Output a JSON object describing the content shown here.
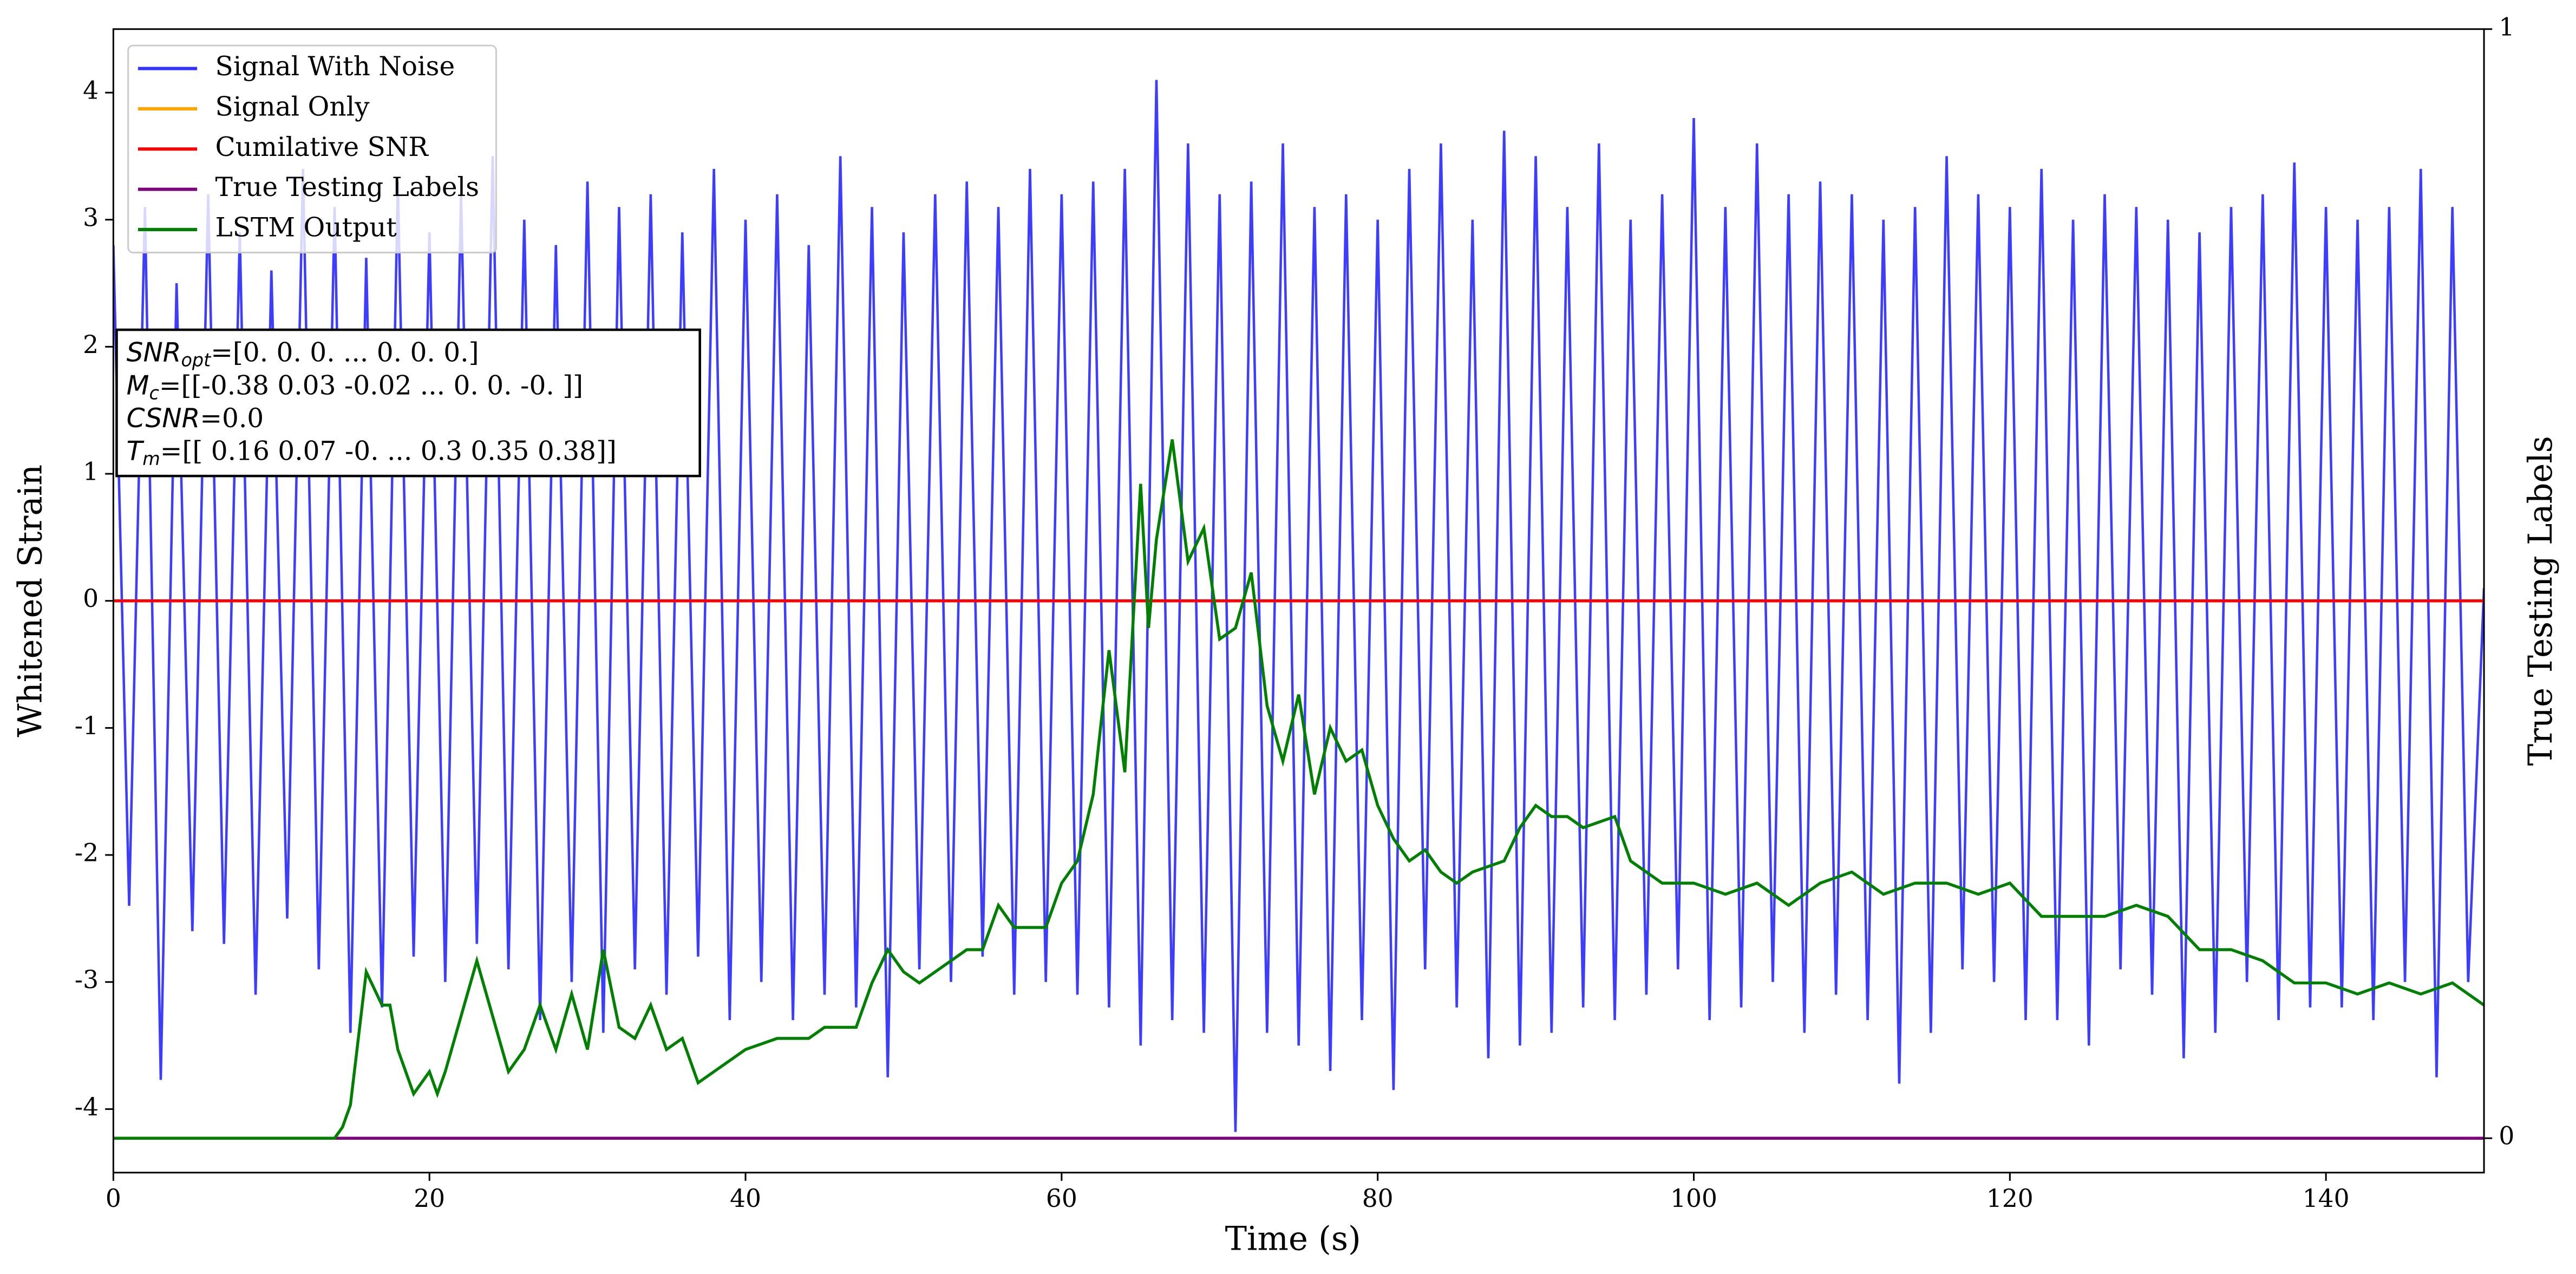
{
  "chart_data": {
    "type": "line",
    "xlabel": "Time (s)",
    "ylabel": "Whitened Strain",
    "y2label": "True Testing Labels",
    "xlim": [
      0,
      150
    ],
    "xticks": [
      0,
      20,
      40,
      60,
      80,
      100,
      120,
      140
    ],
    "ylim": [
      -4.5,
      4.5
    ],
    "yticks": [
      -4,
      -3,
      -2,
      -1,
      0,
      1,
      2,
      3,
      4
    ],
    "y2lim": [
      -0.031,
      1
    ],
    "y2ticks": [
      0,
      1
    ],
    "legend": "upper left",
    "series": [
      {
        "name": "Signal With Noise",
        "color": "#3333ff",
        "x": [
          0,
          1,
          2,
          3,
          4,
          5,
          6,
          7,
          8,
          9,
          10,
          11,
          12,
          13,
          14,
          15,
          16,
          17,
          18,
          19,
          20,
          21,
          22,
          23,
          24,
          25,
          26,
          27,
          28,
          29,
          30,
          31,
          32,
          33,
          34,
          35,
          36,
          37,
          38,
          39,
          40,
          41,
          42,
          43,
          44,
          45,
          46,
          47,
          48,
          49,
          50,
          51,
          52,
          53,
          54,
          55,
          56,
          57,
          58,
          59,
          60,
          61,
          62,
          63,
          64,
          65,
          66,
          67,
          68,
          69,
          70,
          71,
          72,
          73,
          74,
          75,
          76,
          77,
          78,
          79,
          80,
          81,
          82,
          83,
          84,
          85,
          86,
          87,
          88,
          89,
          90,
          91,
          92,
          93,
          94,
          95,
          96,
          97,
          98,
          99,
          100,
          101,
          102,
          103,
          104,
          105,
          106,
          107,
          108,
          109,
          110,
          111,
          112,
          113,
          114,
          115,
          116,
          117,
          118,
          119,
          120,
          121,
          122,
          123,
          124,
          125,
          126,
          127,
          128,
          129,
          130,
          131,
          132,
          133,
          134,
          135,
          136,
          137,
          138,
          139,
          140,
          141,
          142,
          143,
          144,
          145,
          146,
          147,
          148,
          149,
          150
        ],
        "values": [
          2.8,
          -2.4,
          3.1,
          -3.77,
          2.5,
          -2.6,
          3.2,
          -2.7,
          2.9,
          -3.1,
          2.6,
          -2.5,
          3.4,
          -2.9,
          3.1,
          -3.4,
          2.7,
          -3.2,
          3.3,
          -2.8,
          2.9,
          -3.0,
          3.2,
          -2.7,
          3.5,
          -2.9,
          3.0,
          -3.3,
          2.8,
          -3.0,
          3.3,
          -3.4,
          3.1,
          -2.9,
          3.2,
          -3.1,
          2.9,
          -2.8,
          3.4,
          -3.3,
          3.0,
          -3.0,
          3.2,
          -3.3,
          2.8,
          -3.1,
          3.5,
          -3.2,
          3.1,
          -3.75,
          2.9,
          -2.9,
          3.2,
          -3.0,
          3.3,
          -2.8,
          3.1,
          -3.1,
          3.4,
          -3.0,
          3.2,
          -3.1,
          3.3,
          -3.2,
          3.4,
          -3.5,
          4.1,
          -3.3,
          3.6,
          -3.4,
          3.2,
          -4.18,
          3.3,
          -3.4,
          3.6,
          -3.5,
          3.1,
          -3.7,
          3.2,
          -3.3,
          3.0,
          -3.85,
          3.4,
          -2.9,
          3.6,
          -3.2,
          3.0,
          -3.6,
          3.7,
          -3.5,
          3.5,
          -3.4,
          3.1,
          -3.2,
          3.6,
          -3.3,
          3.0,
          -3.1,
          3.2,
          -2.9,
          3.8,
          -3.3,
          3.1,
          -3.2,
          3.6,
          -3.0,
          3.2,
          -3.4,
          3.3,
          -3.1,
          3.2,
          -3.3,
          3.0,
          -3.8,
          3.1,
          -3.4,
          3.5,
          -2.9,
          3.2,
          -3.0,
          3.1,
          -3.3,
          3.4,
          -3.3,
          3.0,
          -3.5,
          3.2,
          -2.9,
          3.1,
          -3.1,
          3.0,
          -3.6,
          2.9,
          -3.4,
          3.1,
          -3.0,
          3.2,
          -3.3,
          3.45,
          -3.2,
          3.1,
          -3.2,
          3.0,
          -3.3,
          3.1,
          -3.0,
          3.4,
          -3.75,
          3.1,
          -3.0,
          0.1
        ]
      },
      {
        "name": "Signal Only",
        "color": "#ffa500",
        "x": [
          0,
          150
        ],
        "values": [
          0,
          0
        ]
      },
      {
        "name": "Cumilative SNR",
        "color": "#ff0000",
        "x": [
          0,
          150
        ],
        "values": [
          0,
          0
        ]
      },
      {
        "name": "True Testing Labels",
        "color": "#800080",
        "axis": "y2",
        "x": [
          0,
          150
        ],
        "values": [
          0,
          0
        ]
      },
      {
        "name": "LSTM Output",
        "color": "#008000",
        "axis": "y2",
        "x": [
          0,
          14,
          14.5,
          15,
          16,
          17,
          17.5,
          18,
          19,
          20,
          20.5,
          21,
          22,
          23,
          24,
          25,
          26,
          27,
          28,
          29,
          30,
          31,
          32,
          33,
          34,
          35,
          36,
          37,
          38,
          40,
          42,
          44,
          45,
          47,
          48,
          49,
          50,
          51,
          52,
          54,
          55,
          56,
          57,
          58,
          59,
          60,
          61,
          62,
          63,
          64,
          65,
          65.5,
          66,
          67,
          68,
          69,
          70,
          71,
          72,
          73,
          74,
          75,
          76,
          77,
          78,
          79,
          80,
          81,
          82,
          83,
          84,
          85,
          86,
          88,
          89,
          90,
          91,
          92,
          93,
          95,
          96,
          98,
          100,
          102,
          104,
          106,
          108,
          110,
          112,
          114,
          116,
          118,
          120,
          122,
          124,
          126,
          128,
          130,
          132,
          134,
          136,
          138,
          140,
          142,
          144,
          146,
          148,
          150
        ],
        "values": [
          0,
          0,
          0.01,
          0.03,
          0.15,
          0.12,
          0.12,
          0.08,
          0.04,
          0.06,
          0.04,
          0.06,
          0.11,
          0.16,
          0.11,
          0.06,
          0.08,
          0.12,
          0.08,
          0.13,
          0.08,
          0.17,
          0.1,
          0.09,
          0.12,
          0.08,
          0.09,
          0.05,
          0.06,
          0.08,
          0.09,
          0.09,
          0.1,
          0.1,
          0.14,
          0.17,
          0.15,
          0.14,
          0.15,
          0.17,
          0.17,
          0.21,
          0.19,
          0.19,
          0.19,
          0.23,
          0.25,
          0.31,
          0.44,
          0.33,
          0.59,
          0.46,
          0.54,
          0.63,
          0.52,
          0.55,
          0.45,
          0.46,
          0.51,
          0.39,
          0.34,
          0.4,
          0.31,
          0.37,
          0.34,
          0.35,
          0.3,
          0.27,
          0.25,
          0.26,
          0.24,
          0.23,
          0.24,
          0.25,
          0.28,
          0.3,
          0.29,
          0.29,
          0.28,
          0.29,
          0.25,
          0.23,
          0.23,
          0.22,
          0.23,
          0.21,
          0.23,
          0.24,
          0.22,
          0.23,
          0.23,
          0.22,
          0.23,
          0.2,
          0.2,
          0.2,
          0.21,
          0.2,
          0.17,
          0.17,
          0.16,
          0.14,
          0.14,
          0.13,
          0.14,
          0.13,
          0.14,
          0.12
        ]
      }
    ],
    "annotation": [
      {
        "var": "SNR",
        "sub": "opt",
        "text": "=[0. 0. 0. ... 0. 0. 0.]"
      },
      {
        "var": "M",
        "sub": "c",
        "text": "=[[-0.38  0.03 -0.02 ...  0.    0.   -0.  ]]"
      },
      {
        "var": "CSNR",
        "text": "=0.0"
      },
      {
        "var": "T",
        "sub": "m",
        "text": "=[[ 0.16  0.07 -0.   ...  0.3   0.35  0.38]]"
      }
    ]
  }
}
